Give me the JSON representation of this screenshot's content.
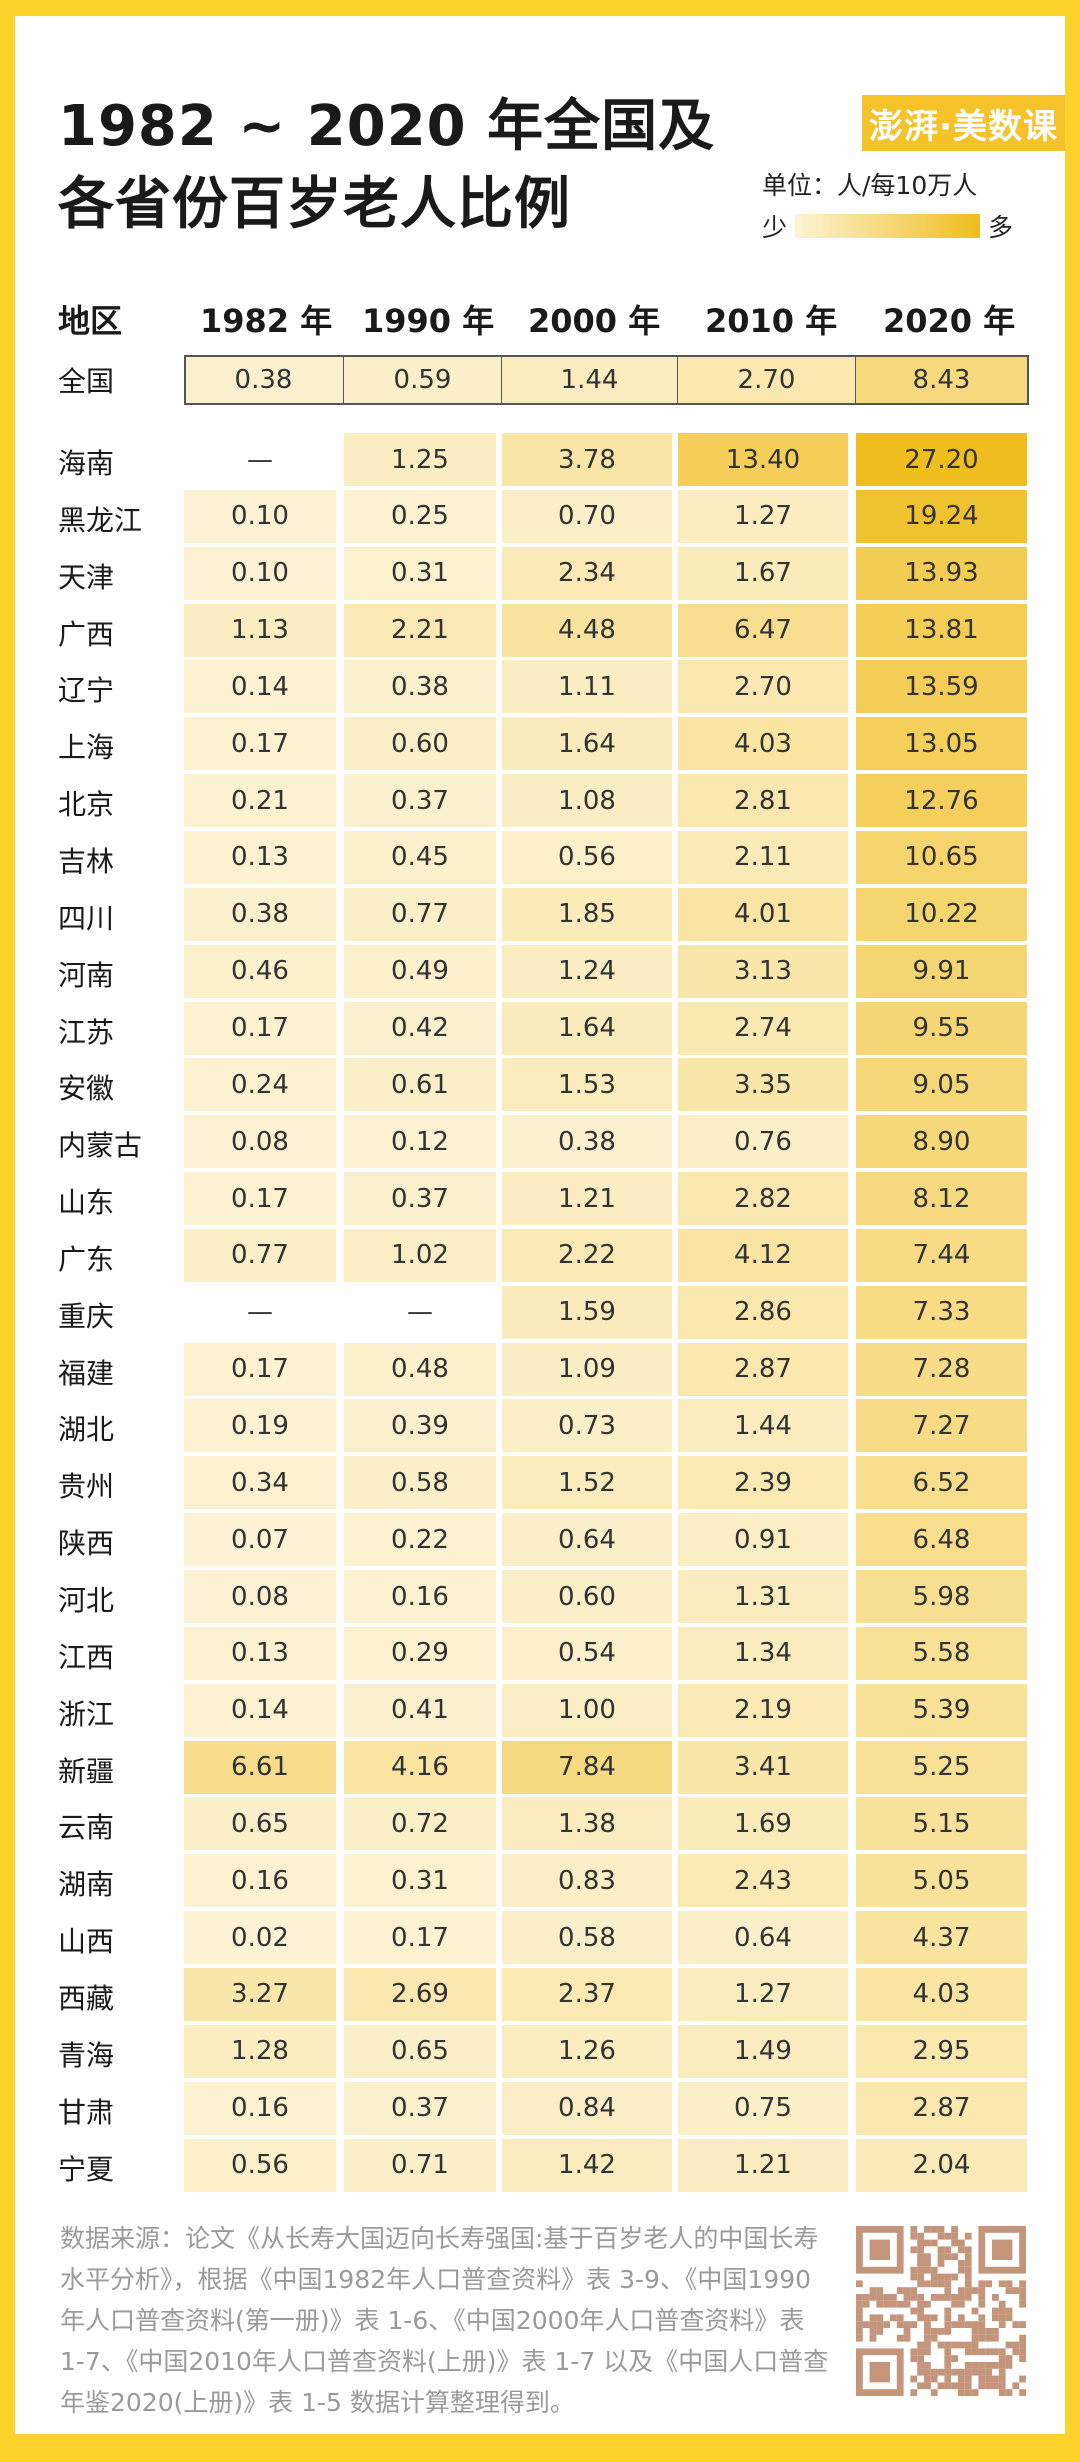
{
  "header": {
    "title_line1": "1982 ~ 2020 年全国及",
    "title_line2": "各省份百岁老人比例",
    "logo_text": "澎湃·美数课",
    "unit": "单位：人/每10万人",
    "legend_low": "少",
    "legend_high": "多",
    "colors": {
      "low": "#fcf3d6",
      "high": "#f0bd1e",
      "frame": "#fdd22a"
    }
  },
  "chart_data": {
    "type": "table",
    "region_header": "地区",
    "columns": [
      "1982 年",
      "1990 年",
      "2000 年",
      "2010 年",
      "2020 年"
    ],
    "national": {
      "region": "全国",
      "values": [
        "0.38",
        "0.59",
        "1.44",
        "2.70",
        "8.43"
      ]
    },
    "missing_mark": "—",
    "rows": [
      {
        "region": "海南",
        "values": [
          null,
          "1.25",
          "3.78",
          "13.40",
          "27.20"
        ]
      },
      {
        "region": "黑龙江",
        "values": [
          "0.10",
          "0.25",
          "0.70",
          "1.27",
          "19.24"
        ]
      },
      {
        "region": "天津",
        "values": [
          "0.10",
          "0.31",
          "2.34",
          "1.67",
          "13.93"
        ]
      },
      {
        "region": "广西",
        "values": [
          "1.13",
          "2.21",
          "4.48",
          "6.47",
          "13.81"
        ]
      },
      {
        "region": "辽宁",
        "values": [
          "0.14",
          "0.38",
          "1.11",
          "2.70",
          "13.59"
        ]
      },
      {
        "region": "上海",
        "values": [
          "0.17",
          "0.60",
          "1.64",
          "4.03",
          "13.05"
        ]
      },
      {
        "region": "北京",
        "values": [
          "0.21",
          "0.37",
          "1.08",
          "2.81",
          "12.76"
        ]
      },
      {
        "region": "吉林",
        "values": [
          "0.13",
          "0.45",
          "0.56",
          "2.11",
          "10.65"
        ]
      },
      {
        "region": "四川",
        "values": [
          "0.38",
          "0.77",
          "1.85",
          "4.01",
          "10.22"
        ]
      },
      {
        "region": "河南",
        "values": [
          "0.46",
          "0.49",
          "1.24",
          "3.13",
          "9.91"
        ]
      },
      {
        "region": "江苏",
        "values": [
          "0.17",
          "0.42",
          "1.64",
          "2.74",
          "9.55"
        ]
      },
      {
        "region": "安徽",
        "values": [
          "0.24",
          "0.61",
          "1.53",
          "3.35",
          "9.05"
        ]
      },
      {
        "region": "内蒙古",
        "values": [
          "0.08",
          "0.12",
          "0.38",
          "0.76",
          "8.90"
        ]
      },
      {
        "region": "山东",
        "values": [
          "0.17",
          "0.37",
          "1.21",
          "2.82",
          "8.12"
        ]
      },
      {
        "region": "广东",
        "values": [
          "0.77",
          "1.02",
          "2.22",
          "4.12",
          "7.44"
        ]
      },
      {
        "region": "重庆",
        "values": [
          null,
          null,
          "1.59",
          "2.86",
          "7.33"
        ]
      },
      {
        "region": "福建",
        "values": [
          "0.17",
          "0.48",
          "1.09",
          "2.87",
          "7.28"
        ]
      },
      {
        "region": "湖北",
        "values": [
          "0.19",
          "0.39",
          "0.73",
          "1.44",
          "7.27"
        ]
      },
      {
        "region": "贵州",
        "values": [
          "0.34",
          "0.58",
          "1.52",
          "2.39",
          "6.52"
        ]
      },
      {
        "region": "陕西",
        "values": [
          "0.07",
          "0.22",
          "0.64",
          "0.91",
          "6.48"
        ]
      },
      {
        "region": "河北",
        "values": [
          "0.08",
          "0.16",
          "0.60",
          "1.31",
          "5.98"
        ]
      },
      {
        "region": "江西",
        "values": [
          "0.13",
          "0.29",
          "0.54",
          "1.34",
          "5.58"
        ]
      },
      {
        "region": "浙江",
        "values": [
          "0.14",
          "0.41",
          "1.00",
          "2.19",
          "5.39"
        ]
      },
      {
        "region": "新疆",
        "values": [
          "6.61",
          "4.16",
          "7.84",
          "3.41",
          "5.25"
        ]
      },
      {
        "region": "云南",
        "values": [
          "0.65",
          "0.72",
          "1.38",
          "1.69",
          "5.15"
        ]
      },
      {
        "region": "湖南",
        "values": [
          "0.16",
          "0.31",
          "0.83",
          "2.43",
          "5.05"
        ]
      },
      {
        "region": "山西",
        "values": [
          "0.02",
          "0.17",
          "0.58",
          "0.64",
          "4.37"
        ]
      },
      {
        "region": "西藏",
        "values": [
          "3.27",
          "2.69",
          "2.37",
          "1.27",
          "4.03"
        ]
      },
      {
        "region": "青海",
        "values": [
          "1.28",
          "0.65",
          "1.26",
          "1.49",
          "2.95"
        ]
      },
      {
        "region": "甘肃",
        "values": [
          "0.16",
          "0.37",
          "0.84",
          "0.75",
          "2.87"
        ]
      },
      {
        "region": "宁夏",
        "values": [
          "0.56",
          "0.71",
          "1.42",
          "1.21",
          "2.04"
        ]
      }
    ]
  },
  "footer": {
    "source": "数据来源：论文《从长寿大国迈向长寿强国:基于百岁老人的中国长寿水平分析》，根据《中国1982年人口普查资料》表 3-9、《中国1990年人口普查资料(第一册)》表 1-6、《中国2000年人口普查资料》表 1-7、《中国2010年人口普查资料(上册)》表 1-7 以及《中国人口普查年鉴2020(上册)》表 1-5 数据计算整理得到。",
    "qr_color": "#c4957a"
  }
}
